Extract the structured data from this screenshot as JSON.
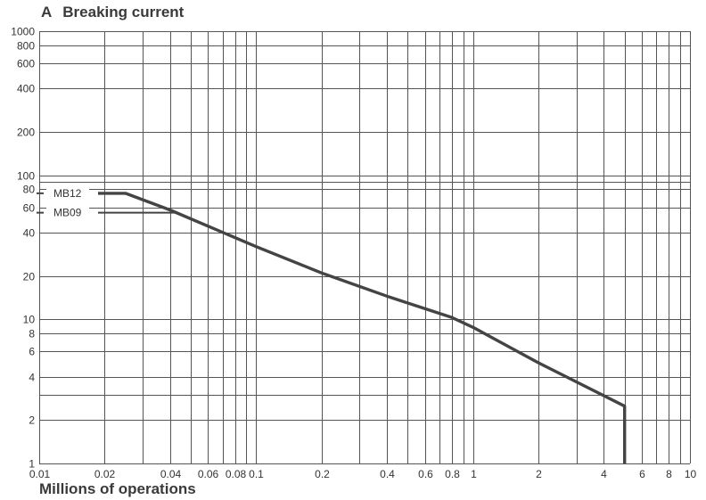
{
  "chart_data": {
    "type": "line",
    "title_letter": "A",
    "title": "Breaking current",
    "xlabel": "Millions of operations",
    "ylabel": "",
    "x_scale": "log",
    "y_scale": "log",
    "xlim": [
      0.01,
      10
    ],
    "ylim": [
      1,
      1000
    ],
    "grid": true,
    "x_ticks": [
      {
        "v": 0.01,
        "label": "0.01"
      },
      {
        "v": 0.02,
        "label": "0.02"
      },
      {
        "v": 0.03,
        "label": ""
      },
      {
        "v": 0.04,
        "label": "0.04"
      },
      {
        "v": 0.05,
        "label": ""
      },
      {
        "v": 0.06,
        "label": "0.06"
      },
      {
        "v": 0.07,
        "label": ""
      },
      {
        "v": 0.08,
        "label": "0.08"
      },
      {
        "v": 0.09,
        "label": ""
      },
      {
        "v": 0.1,
        "label": "0.1"
      },
      {
        "v": 0.2,
        "label": "0.2"
      },
      {
        "v": 0.3,
        "label": ""
      },
      {
        "v": 0.4,
        "label": "0.4"
      },
      {
        "v": 0.5,
        "label": ""
      },
      {
        "v": 0.6,
        "label": "0.6"
      },
      {
        "v": 0.7,
        "label": ""
      },
      {
        "v": 0.8,
        "label": "0.8"
      },
      {
        "v": 0.9,
        "label": ""
      },
      {
        "v": 1,
        "label": "1"
      },
      {
        "v": 2,
        "label": "2"
      },
      {
        "v": 3,
        "label": ""
      },
      {
        "v": 4,
        "label": "4"
      },
      {
        "v": 5,
        "label": ""
      },
      {
        "v": 6,
        "label": "6"
      },
      {
        "v": 7,
        "label": ""
      },
      {
        "v": 8,
        "label": "8"
      },
      {
        "v": 9,
        "label": ""
      },
      {
        "v": 10,
        "label": "10"
      }
    ],
    "y_ticks": [
      {
        "v": 1,
        "label": "1"
      },
      {
        "v": 2,
        "label": "2"
      },
      {
        "v": 3,
        "label": ""
      },
      {
        "v": 4,
        "label": "4"
      },
      {
        "v": 6,
        "label": "6"
      },
      {
        "v": 8,
        "label": "8"
      },
      {
        "v": 10,
        "label": "10"
      },
      {
        "v": 20,
        "label": "20"
      },
      {
        "v": 40,
        "label": "40"
      },
      {
        "v": 60,
        "label": "60"
      },
      {
        "v": 80,
        "label": "80"
      },
      {
        "v": 90,
        "label": ""
      },
      {
        "v": 100,
        "label": "100"
      },
      {
        "v": 200,
        "label": "200"
      },
      {
        "v": 400,
        "label": "400"
      },
      {
        "v": 600,
        "label": "600"
      },
      {
        "v": 800,
        "label": "800"
      },
      {
        "v": 1000,
        "label": "1000"
      }
    ],
    "series": [
      {
        "x": [
          0.025,
          0.04,
          0.1,
          0.2,
          0.4,
          0.8,
          1,
          2,
          5,
          5
        ],
        "y": [
          75,
          57.5,
          32,
          21,
          14.5,
          10.3,
          8.8,
          5,
          2.5,
          1
        ]
      }
    ],
    "annotations": [
      {
        "label": "MB12",
        "y": 75,
        "x_end": 0.025
      },
      {
        "label": "MB09",
        "y": 55,
        "x_end": 0.0425
      }
    ]
  }
}
